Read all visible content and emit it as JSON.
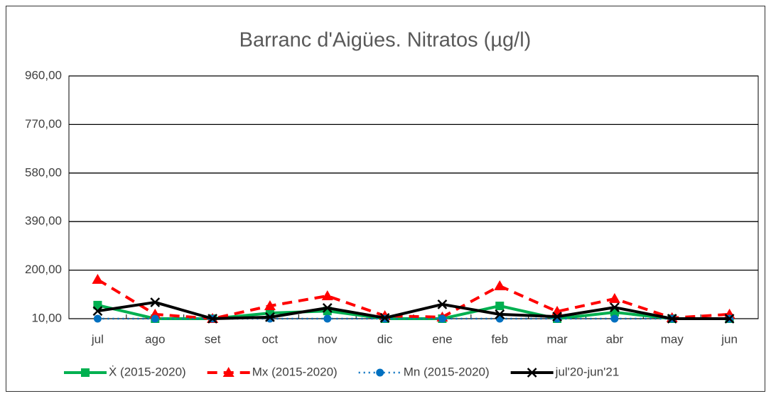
{
  "chart_data": {
    "type": "line",
    "title": "Barranc d'Aigües. Nitratos (µg/l)",
    "categories": [
      "jul",
      "ago",
      "set",
      "oct",
      "nov",
      "dic",
      "ene",
      "feb",
      "mar",
      "abr",
      "may",
      "jun"
    ],
    "series": [
      {
        "name": "Ẋ (2015-2020)",
        "color": "#00b050",
        "marker": "square",
        "dash": "solid",
        "values": [
          63,
          10,
          10,
          32,
          40,
          10,
          10,
          60,
          10,
          35,
          10,
          10
        ]
      },
      {
        "name": "Mx (2015-2020)",
        "color": "#ff0000",
        "marker": "triangle",
        "dash": "dashed",
        "values": [
          163,
          27,
          10,
          60,
          99,
          21,
          16,
          138,
          38,
          88,
          13,
          27
        ]
      },
      {
        "name": "Mn (2015-2020)",
        "color": "#0070c0",
        "marker": "circle",
        "dash": "dotted",
        "values": [
          10,
          10,
          10,
          10,
          10,
          10,
          10,
          10,
          10,
          10,
          10,
          10
        ]
      },
      {
        "name": "jul'20-jun'21",
        "color": "#000000",
        "marker": "x",
        "dash": "solid",
        "values": [
          40,
          74,
          10,
          16,
          52,
          13,
          66,
          27,
          18,
          54,
          10,
          10
        ]
      }
    ],
    "ylim": [
      10,
      960
    ],
    "yticks": [
      {
        "value": 10,
        "label": "10,00"
      },
      {
        "value": 200,
        "label": "200,00"
      },
      {
        "value": 390,
        "label": "390,00"
      },
      {
        "value": 580,
        "label": "580,00"
      },
      {
        "value": 770,
        "label": "770,00"
      },
      {
        "value": 960,
        "label": "960,00"
      }
    ],
    "grid": true,
    "legend": "bottom"
  }
}
